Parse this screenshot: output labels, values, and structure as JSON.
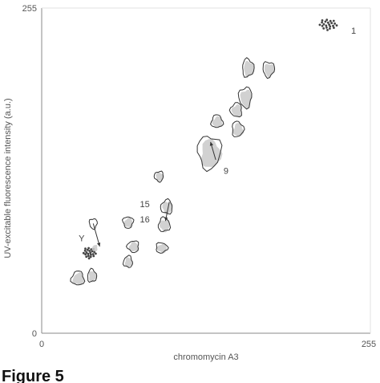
{
  "figure_caption": "Figure 5",
  "chart_data": {
    "type": "scatter",
    "title": "",
    "xlabel": "chromomycin A3",
    "ylabel": "UV-excitable fluorescence intensity (a.u.)",
    "xlim": [
      0,
      255
    ],
    "ylim": [
      0,
      255
    ],
    "x_ticks": [
      "0",
      "255"
    ],
    "y_ticks": [
      "0",
      "255"
    ],
    "grid": false,
    "legend": "none",
    "clusters": [
      {
        "label": "1",
        "x": 222,
        "y": 242,
        "w": 14,
        "h": 9,
        "sparse": true
      },
      {
        "label": "",
        "x": 160,
        "y": 208,
        "w": 9,
        "h": 14
      },
      {
        "label": "",
        "x": 176,
        "y": 207,
        "w": 9,
        "h": 12
      },
      {
        "label": "",
        "x": 158,
        "y": 185,
        "w": 10,
        "h": 16
      },
      {
        "label": "",
        "x": 151,
        "y": 175,
        "w": 9,
        "h": 11
      },
      {
        "label": "",
        "x": 136,
        "y": 166,
        "w": 9,
        "h": 10
      },
      {
        "label": "",
        "x": 152,
        "y": 160,
        "w": 9,
        "h": 12
      },
      {
        "label": "9",
        "x": 130,
        "y": 142,
        "w": 18,
        "h": 26
      },
      {
        "label": "",
        "x": 91,
        "y": 123,
        "w": 7,
        "h": 8
      },
      {
        "label": "15",
        "x": 97,
        "y": 99,
        "w": 9,
        "h": 11
      },
      {
        "label": "16",
        "x": 95,
        "y": 85,
        "w": 9,
        "h": 11
      },
      {
        "label": "",
        "x": 93,
        "y": 67,
        "w": 9,
        "h": 8
      },
      {
        "label": "",
        "x": 67,
        "y": 87,
        "w": 8,
        "h": 9
      },
      {
        "label": "",
        "x": 71,
        "y": 68,
        "w": 9,
        "h": 9
      },
      {
        "label": "",
        "x": 67,
        "y": 56,
        "w": 7,
        "h": 9
      },
      {
        "label": "",
        "x": 39,
        "y": 45,
        "w": 7,
        "h": 10
      },
      {
        "label": "",
        "x": 37,
        "y": 63,
        "w": 10,
        "h": 9,
        "sparse": true
      },
      {
        "label": "Y",
        "x": 40,
        "y": 86,
        "w": 6,
        "h": 8,
        "outline_only": true
      },
      {
        "label": "",
        "x": 41,
        "y": 67,
        "w": 5,
        "h": 6,
        "fill_only": true
      },
      {
        "label": "",
        "x": 28,
        "y": 43,
        "w": 10,
        "h": 11
      }
    ],
    "annotations": [
      {
        "text": "1",
        "x": 242,
        "y": 235
      },
      {
        "text": "9",
        "x": 143,
        "y": 125
      },
      {
        "text": "15",
        "x": 80,
        "y": 99
      },
      {
        "text": "16",
        "x": 80,
        "y": 87
      },
      {
        "text": "Y",
        "x": 31,
        "y": 72
      }
    ],
    "arrows": [
      {
        "from_x": 40,
        "from_y": 86,
        "to_x": 45,
        "to_y": 68
      },
      {
        "from_x": 135,
        "from_y": 136,
        "to_x": 131,
        "to_y": 150
      },
      {
        "from_x": 99,
        "from_y": 103,
        "to_x": 96,
        "to_y": 88
      }
    ]
  }
}
